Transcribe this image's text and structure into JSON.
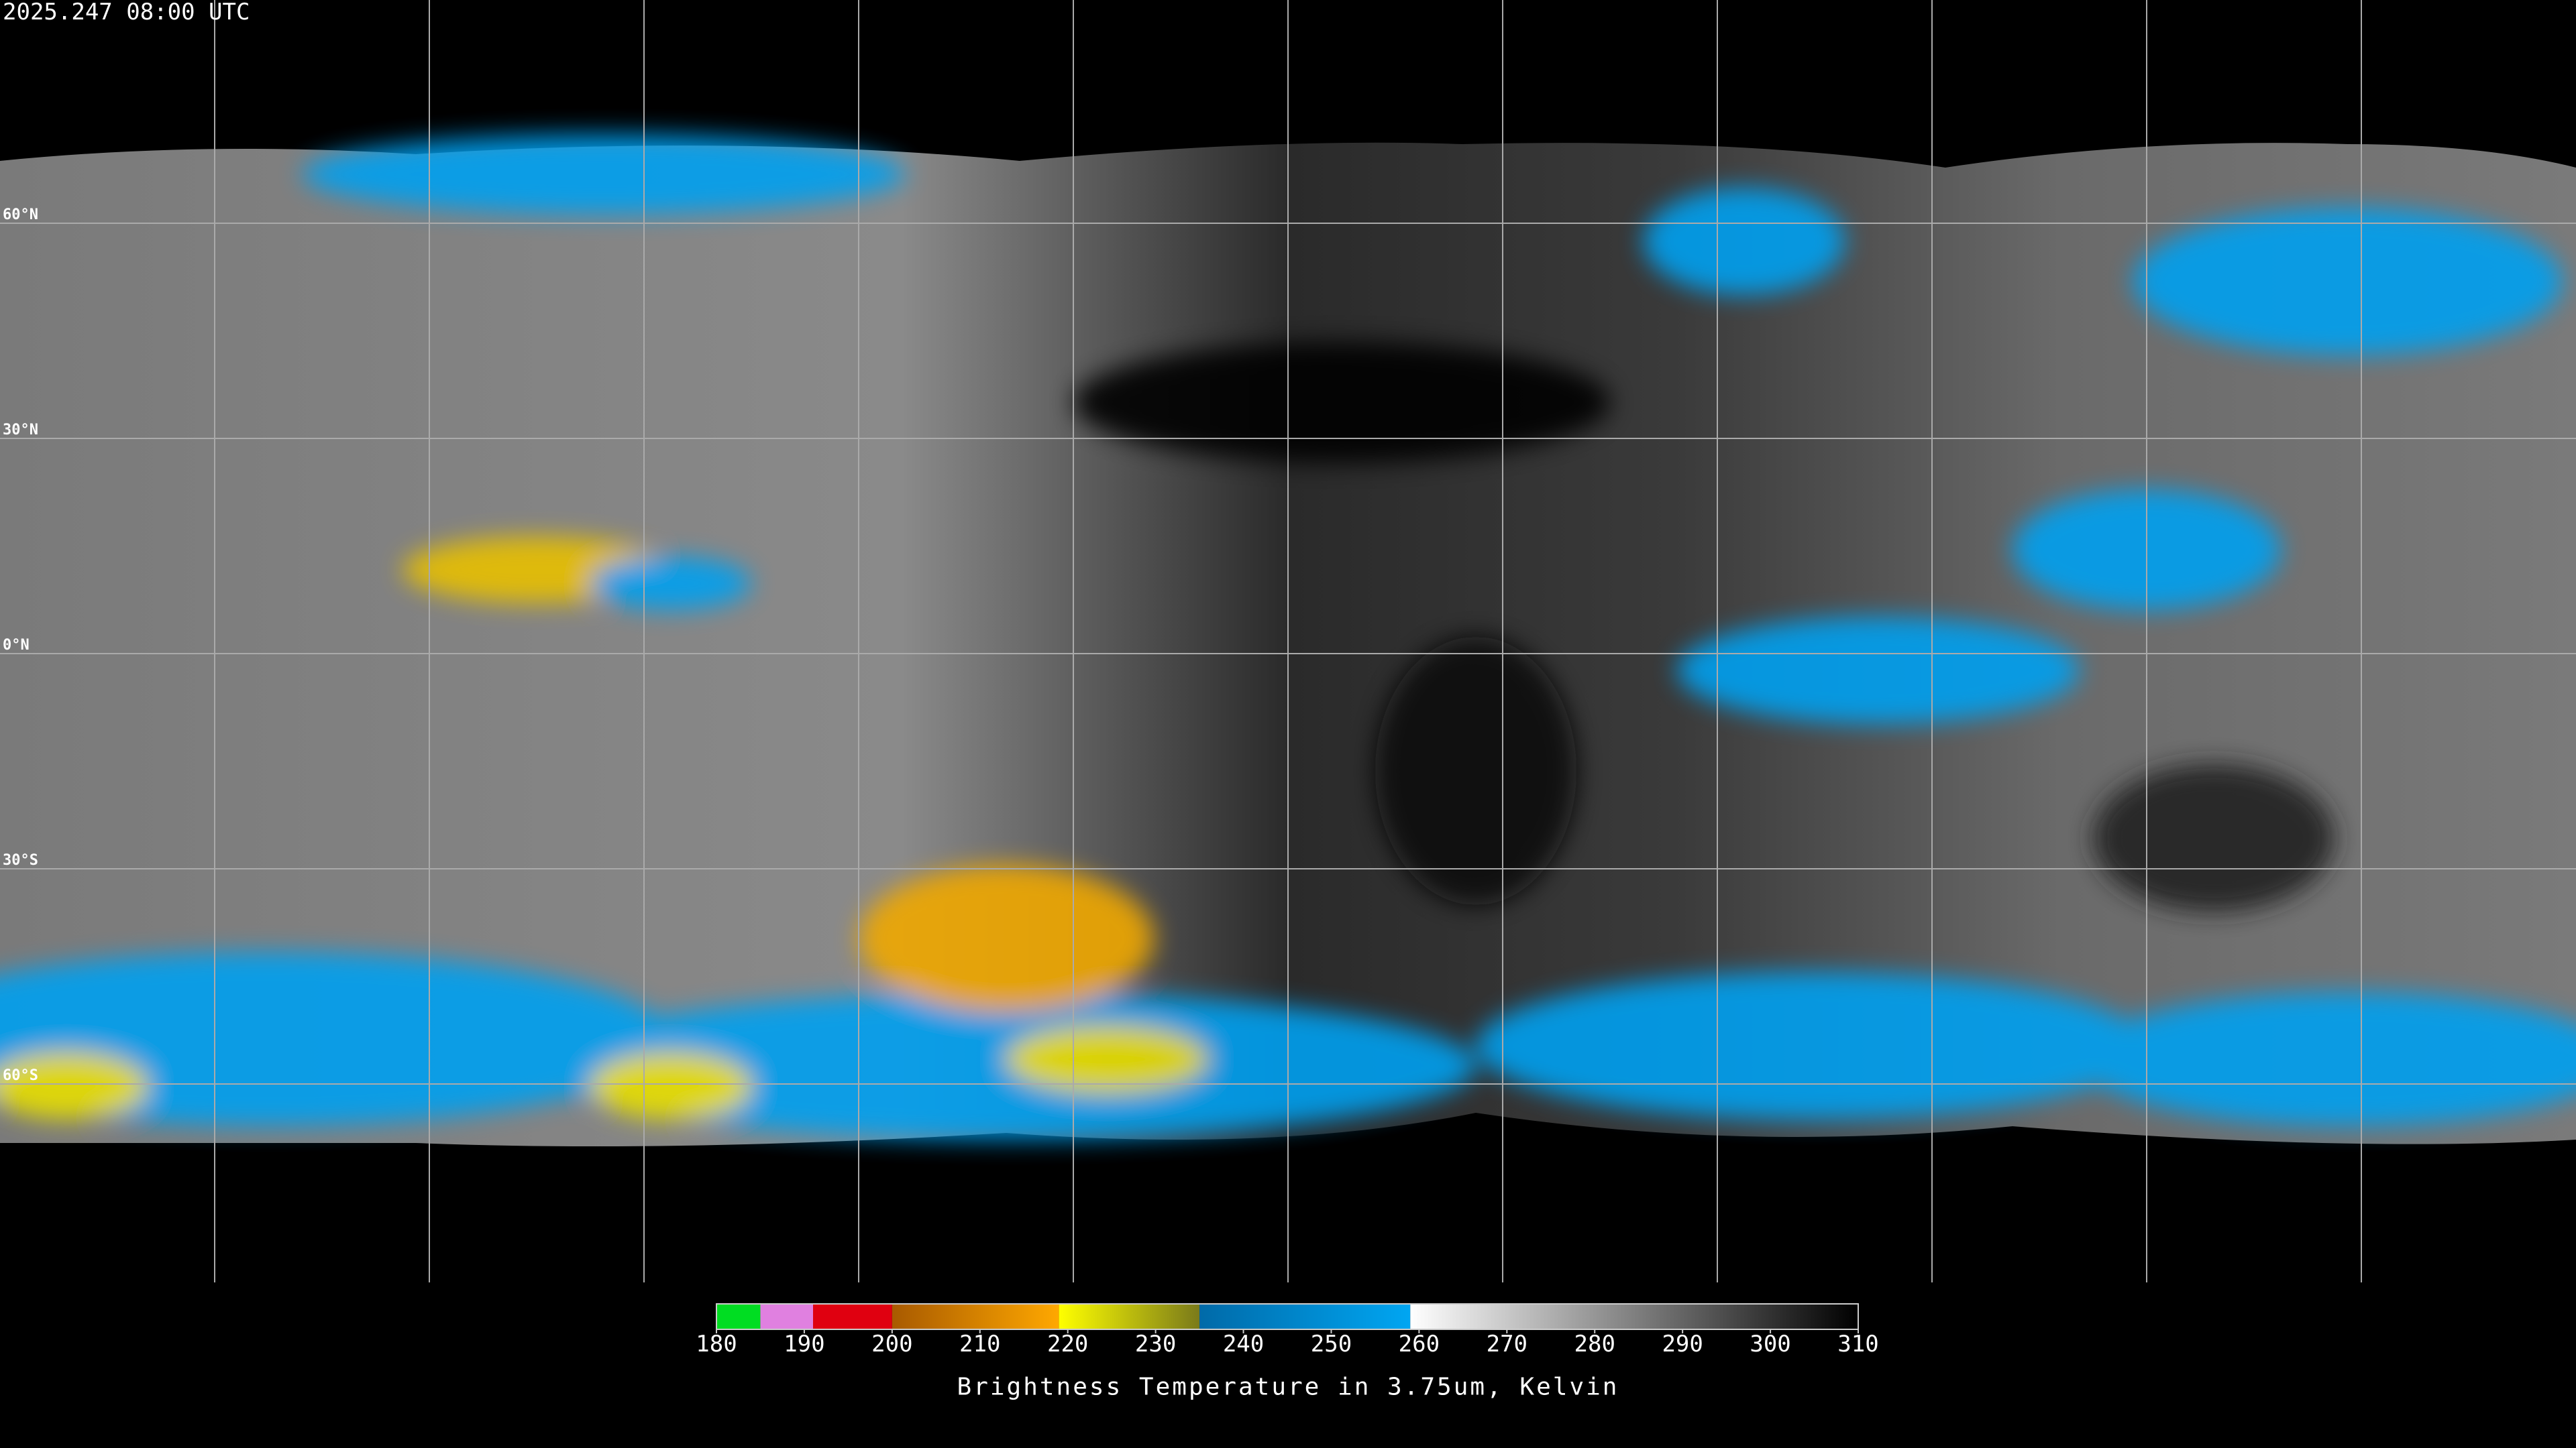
{
  "header": {
    "timestamp": "2025.247 08:00 UTC"
  },
  "map": {
    "lat_labels": [
      "60°N",
      "30°N",
      "0°N",
      "30°S",
      "60°S"
    ]
  },
  "colorbar": {
    "range": [
      180,
      310
    ],
    "ticks": [
      180,
      190,
      200,
      210,
      220,
      230,
      240,
      250,
      260,
      270,
      280,
      290,
      300,
      310
    ],
    "label": "Brightness Temperature in 3.75um, Kelvin",
    "segments": [
      {
        "from": 180,
        "to": 185,
        "color": "#00dd22"
      },
      {
        "from": 185,
        "to": 191,
        "color": "#e080e0"
      },
      {
        "from": 191,
        "to": 200,
        "color": "#e00010"
      },
      {
        "from": 200,
        "to": 219,
        "color": "#a85a00",
        "color_end": "#ffa800"
      },
      {
        "from": 219,
        "to": 235,
        "color": "#ffff00",
        "color_end": "#7a7a1a"
      },
      {
        "from": 235,
        "to": 259,
        "color": "#006aa8",
        "color_end": "#00a6f2"
      },
      {
        "from": 259,
        "to": 310,
        "color": "#ffffff",
        "color_end": "#000000"
      }
    ]
  }
}
